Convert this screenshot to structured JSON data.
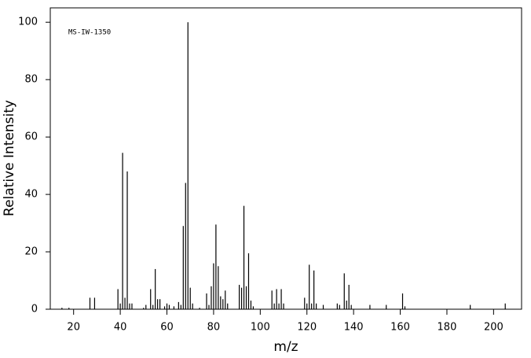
{
  "chart_data": {
    "type": "stem",
    "annotation": "MS-IW-1350",
    "x_label": "m/z",
    "y_label": "Relative Intensity",
    "x": [
      15,
      18,
      27,
      29,
      39,
      40,
      41,
      42,
      43,
      44,
      45,
      50,
      51,
      53,
      54,
      55,
      56,
      57,
      59,
      60,
      61,
      63,
      65,
      66,
      67,
      68,
      69,
      70,
      71,
      74,
      77,
      78,
      79,
      80,
      81,
      82,
      83,
      84,
      85,
      86,
      91,
      92,
      93,
      94,
      95,
      96,
      97,
      105,
      106,
      107,
      108,
      109,
      110,
      119,
      120,
      121,
      122,
      123,
      124,
      127,
      133,
      134,
      136,
      137,
      138,
      139,
      147,
      154,
      161,
      162,
      190,
      205
    ],
    "values": [
      0.5,
      0.5,
      4,
      4,
      7,
      2,
      54.5,
      4,
      48,
      2,
      2,
      0.5,
      1.5,
      7,
      1.5,
      14,
      3.5,
      3.5,
      1,
      2,
      1.5,
      1,
      2.5,
      1.5,
      29,
      44,
      100,
      7.5,
      2,
      0.5,
      5.5,
      1.5,
      8,
      16,
      29.5,
      15,
      4.5,
      3.5,
      6.5,
      2,
      8.5,
      7.5,
      36,
      8,
      19.5,
      3,
      1,
      6.5,
      2,
      7,
      2,
      7,
      2,
      4,
      2,
      15.5,
      2,
      13.5,
      2,
      1.5,
      2,
      1.5,
      12.5,
      3,
      8.5,
      1.5,
      1.5,
      1.5,
      5.5,
      1,
      1.5,
      2
    ],
    "color": "#000000",
    "xlim": [
      10,
      212
    ],
    "xticks": [
      20,
      40,
      60,
      80,
      100,
      120,
      140,
      160,
      180,
      200
    ],
    "ylim": [
      0,
      105
    ],
    "yticks": [
      0,
      20,
      40,
      60,
      80,
      100
    ]
  }
}
